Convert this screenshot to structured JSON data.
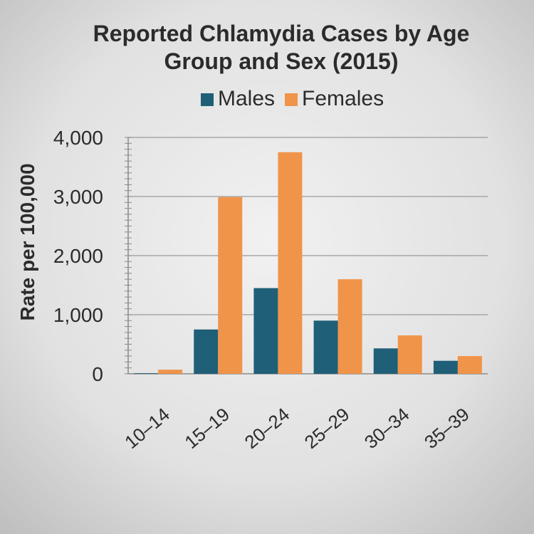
{
  "chart_data": {
    "type": "bar",
    "title_line1": "Reported Chlamydia Cases by Age",
    "title_line2": "Group and Sex (2015)",
    "xlabel": "",
    "ylabel": "Rate per 100,000",
    "ylim": [
      0,
      4000
    ],
    "y_ticks": [
      "0",
      "1,000",
      "2,000",
      "3,000",
      "4,000"
    ],
    "categories": [
      "10–14",
      "15–19",
      "20–24",
      "25–29",
      "30–34",
      "35–39"
    ],
    "series": [
      {
        "name": "Males",
        "color": "#1f5f78",
        "values": [
          10,
          750,
          1450,
          900,
          430,
          220
        ]
      },
      {
        "name": "Females",
        "color": "#f0944a",
        "values": [
          70,
          2990,
          3750,
          1600,
          650,
          300
        ]
      }
    ],
    "legend_position": "top",
    "grid": true
  }
}
